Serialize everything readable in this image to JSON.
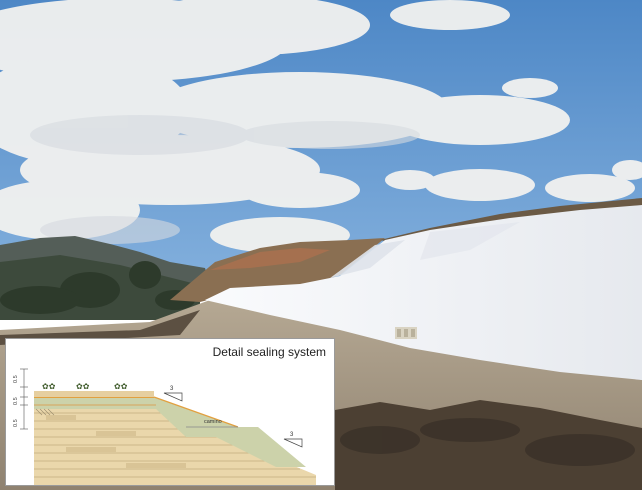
{
  "inset": {
    "title": "Detail sealing system",
    "dim_labels": [
      "0.5",
      "0.5",
      "0.5"
    ],
    "slope_labels": [
      "3",
      "3"
    ],
    "road_label": "camino"
  },
  "colors": {
    "sky": "#5f95cf",
    "membrane": "#f1f3f6",
    "gravel": "#a89a86",
    "hill": "#4f5a4e",
    "sand": "#e9d6a8",
    "green_layer": "#c9cfa8"
  }
}
